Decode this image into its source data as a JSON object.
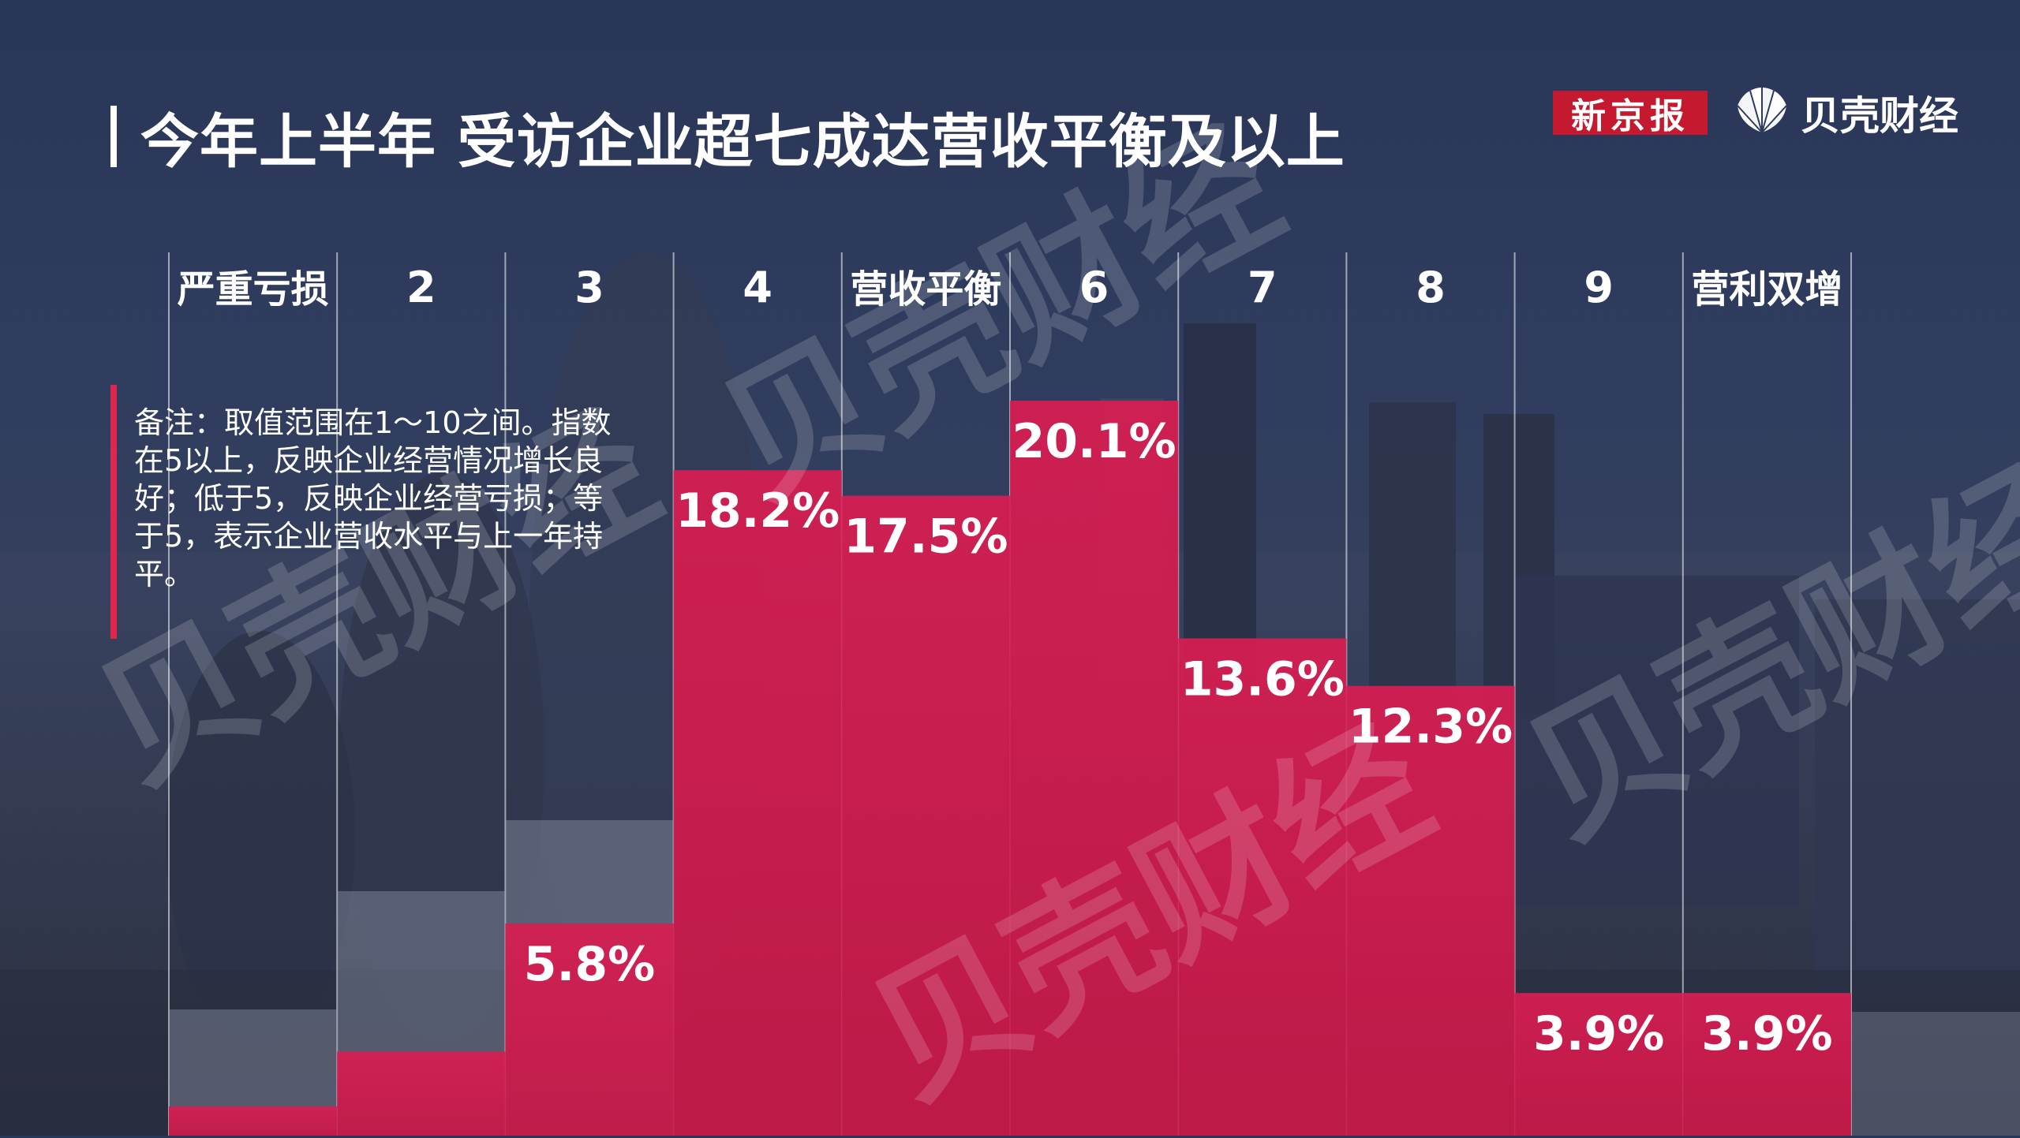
{
  "title": "今年上半年 受访企业超七成达营收平衡及以上",
  "logos": {
    "xinjingbao": "新京报",
    "beike": "贝壳财经"
  },
  "note": "备注：取值范围在1～10之间。指数在5以上，反映企业经营情况增长良好；低于5，反映企业经营亏损；等于5，表示企业营收水平与上一年持平。",
  "watermark": "贝壳财经",
  "colors": {
    "bar": "#d41c4f",
    "bar_top": "#e0264e",
    "ghost": "#9aa3b8",
    "text": "#ffffff"
  },
  "chart_data": {
    "type": "bar",
    "categories": [
      "严重亏损",
      "2",
      "3",
      "4",
      "营收平衡",
      "6",
      "7",
      "8",
      "9",
      "营利双增"
    ],
    "values": [
      0.8,
      2.3,
      5.8,
      18.2,
      17.5,
      20.1,
      13.6,
      12.3,
      3.9,
      3.9
    ],
    "labels": [
      "",
      "",
      "5.8%",
      "18.2%",
      "17.5%",
      "20.1%",
      "13.6%",
      "12.3%",
      "3.9%",
      "3.9%"
    ],
    "ylim": [
      0,
      22
    ],
    "unit": "%"
  }
}
